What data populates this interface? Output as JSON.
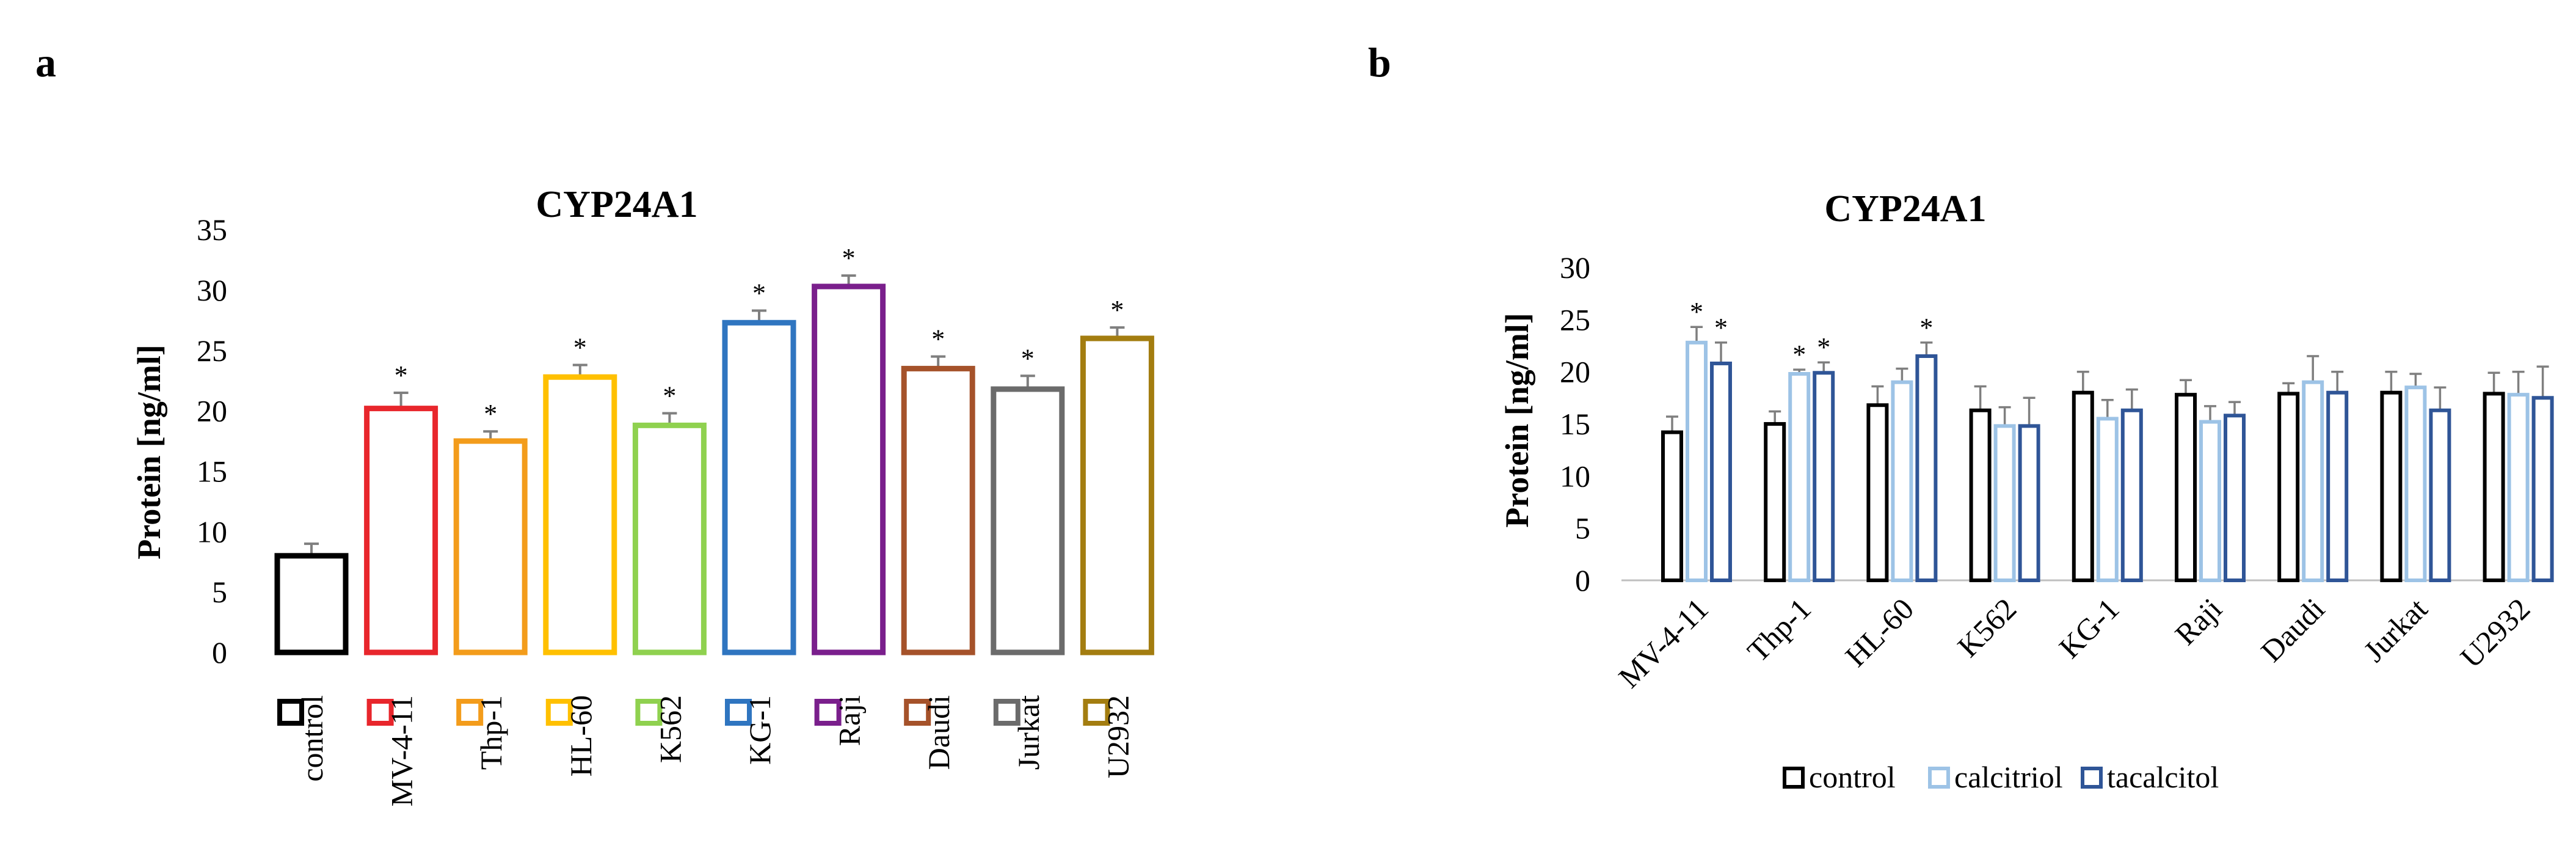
{
  "panels": [
    {
      "label": "a",
      "chart_data": {
        "type": "bar",
        "title": "CYP24A1",
        "xlabel": "",
        "ylabel": "Protein [ng/ml]",
        "ylim": [
          0,
          35
        ],
        "yticks": [
          0,
          5,
          10,
          15,
          20,
          25,
          30,
          35
        ],
        "categories": [
          "control",
          "MV-4-11",
          "Thp-1",
          "HL-60",
          "K562",
          "KG-1",
          "Raji",
          "Daudi",
          "Jurkat",
          "U2932"
        ],
        "values": [
          8.0,
          20.2,
          17.5,
          22.8,
          18.8,
          27.3,
          30.3,
          23.5,
          21.8,
          26.0
        ],
        "errors": [
          1.0,
          1.3,
          0.8,
          1.0,
          1.0,
          1.0,
          0.9,
          1.0,
          1.1,
          0.9
        ],
        "significant": [
          false,
          true,
          true,
          true,
          true,
          true,
          true,
          true,
          true,
          true
        ],
        "significance_marker": "*",
        "colors": [
          "#000000",
          "#e8262c",
          "#f39c1b",
          "#ffc000",
          "#8fd14f",
          "#2f75c0",
          "#7a1f8c",
          "#a5522a",
          "#6b6b6b",
          "#a37d10"
        ],
        "legend": "bottom"
      }
    },
    {
      "label": "b",
      "chart_data": {
        "type": "bar",
        "title": "CYP24A1",
        "xlabel": "",
        "ylabel": "Protein [ng/ml]",
        "ylim": [
          0,
          30
        ],
        "yticks": [
          0,
          5,
          10,
          15,
          20,
          25,
          30
        ],
        "categories": [
          "MV-4-11",
          "Thp-1",
          "HL-60",
          "K562",
          "KG-1",
          "Raji",
          "Daudi",
          "Jurkat",
          "U2932"
        ],
        "series": [
          {
            "name": "control",
            "color": "#000000",
            "values": [
              14.2,
              15.0,
              16.8,
              16.3,
              18.0,
              17.8,
              17.9,
              18.0,
              17.9
            ],
            "errors": [
              1.5,
              1.2,
              1.8,
              2.3,
              2.0,
              1.4,
              1.0,
              2.0,
              2.0
            ],
            "significant": [
              false,
              false,
              false,
              false,
              false,
              false,
              false,
              false,
              false
            ]
          },
          {
            "name": "calcitriol",
            "color": "#9dc3e6",
            "values": [
              22.8,
              19.8,
              19.0,
              14.8,
              15.5,
              15.2,
              19.0,
              18.5,
              17.8
            ],
            "errors": [
              1.5,
              0.4,
              1.3,
              1.8,
              1.8,
              1.5,
              2.5,
              1.3,
              2.2
            ],
            "significant": [
              true,
              true,
              false,
              false,
              false,
              false,
              false,
              false,
              false
            ]
          },
          {
            "name": "tacalcitol",
            "color": "#2f5597",
            "values": [
              20.8,
              19.9,
              21.5,
              14.8,
              16.3,
              15.8,
              18.0,
              16.3,
              17.5
            ],
            "errors": [
              2.0,
              1.0,
              1.3,
              2.7,
              2.0,
              1.3,
              2.0,
              2.2,
              3.0
            ],
            "significant": [
              true,
              true,
              true,
              false,
              false,
              false,
              false,
              false,
              false
            ]
          }
        ],
        "significance_marker": "*",
        "legend": "bottom"
      }
    }
  ]
}
